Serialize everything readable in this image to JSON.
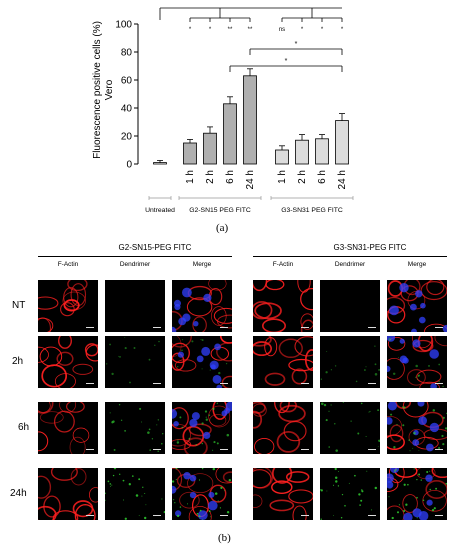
{
  "panel_a_label": "(a)",
  "panel_b_label": "(b)",
  "chart_data": {
    "type": "bar",
    "ylabel": "Fluorescence positive cells (%)",
    "ylabel_sub": "Vero",
    "ylim": [
      0,
      100
    ],
    "yticks": [
      "0",
      "20",
      "40",
      "60",
      "80",
      "100"
    ],
    "categories": [
      "",
      "1 h",
      "2 h",
      "6 h",
      "24 h",
      "1 h",
      "2 h",
      "6 h",
      "24 h"
    ],
    "values": [
      1,
      15,
      22,
      43,
      63,
      10,
      17,
      18,
      31
    ],
    "errors": [
      1.5,
      2.5,
      4.5,
      5,
      5,
      3,
      4,
      3,
      5
    ],
    "groups": [
      {
        "label": "Untreated",
        "start": 0,
        "end": 0
      },
      {
        "label": "G2-SN15 PEG FITC",
        "start": 1,
        "end": 4
      },
      {
        "label": "G3-SN31 PEG FITC",
        "start": 5,
        "end": 8
      }
    ],
    "bar_colors": [
      "#ffffff",
      "#b0b0b0",
      "#b0b0b0",
      "#b0b0b0",
      "#b0b0b0",
      "#dcdcdc",
      "#dcdcdc",
      "#dcdcdc",
      "#dcdcdc"
    ],
    "significance": {
      "main_bracket": [
        "*",
        "*",
        "**",
        "**",
        "ns",
        "*",
        "*",
        "*"
      ],
      "pairs": [
        {
          "from": 4,
          "to": 8,
          "label": "*"
        },
        {
          "from": 3,
          "to": 8,
          "label": "*"
        }
      ]
    }
  },
  "micrographs": {
    "groups": [
      {
        "title": "G2-SN15-PEG FITC",
        "columns": [
          "F-Actin",
          "Dendrimer",
          "Merge"
        ]
      },
      {
        "title": "G3-SN31-PEG FITC",
        "columns": [
          "F-Actin",
          "Dendrimer",
          "Merge"
        ]
      }
    ],
    "rows": [
      "NT",
      "2h",
      "6h",
      "24h"
    ],
    "colors": {
      "actin": "#ff2020",
      "dendrimer": "#30d030",
      "nucleus": "#3040ff"
    }
  }
}
